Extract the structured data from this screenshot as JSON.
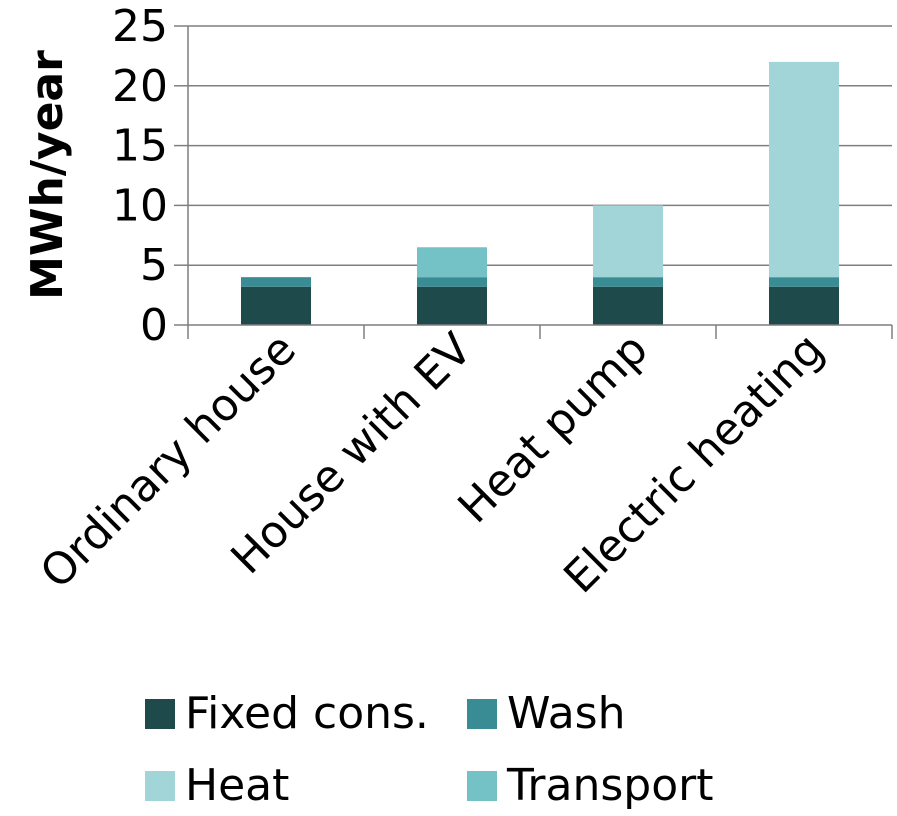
{
  "chart_data": {
    "type": "bar",
    "stacked": true,
    "title": "",
    "xlabel": "",
    "ylabel": "MWh/year",
    "ylim": [
      0,
      25
    ],
    "yticks": [
      0,
      5,
      10,
      15,
      20,
      25
    ],
    "grid": true,
    "legend_position": "bottom",
    "categories": [
      "Ordinary house",
      "House with EV",
      "Heat pump",
      "Electric heating"
    ],
    "series": [
      {
        "name": "Fixed cons.",
        "color": "#1f4a4c",
        "values": [
          3.2,
          3.2,
          3.2,
          3.2
        ]
      },
      {
        "name": "Wash",
        "color": "#3a8c94",
        "values": [
          0.8,
          0.8,
          0.8,
          0.8
        ]
      },
      {
        "name": "Heat",
        "color": "#a1d5d8",
        "values": [
          0,
          0,
          6,
          18
        ]
      },
      {
        "name": "Transport",
        "color": "#74c1c6",
        "values": [
          0,
          2.5,
          0,
          0
        ]
      }
    ]
  }
}
